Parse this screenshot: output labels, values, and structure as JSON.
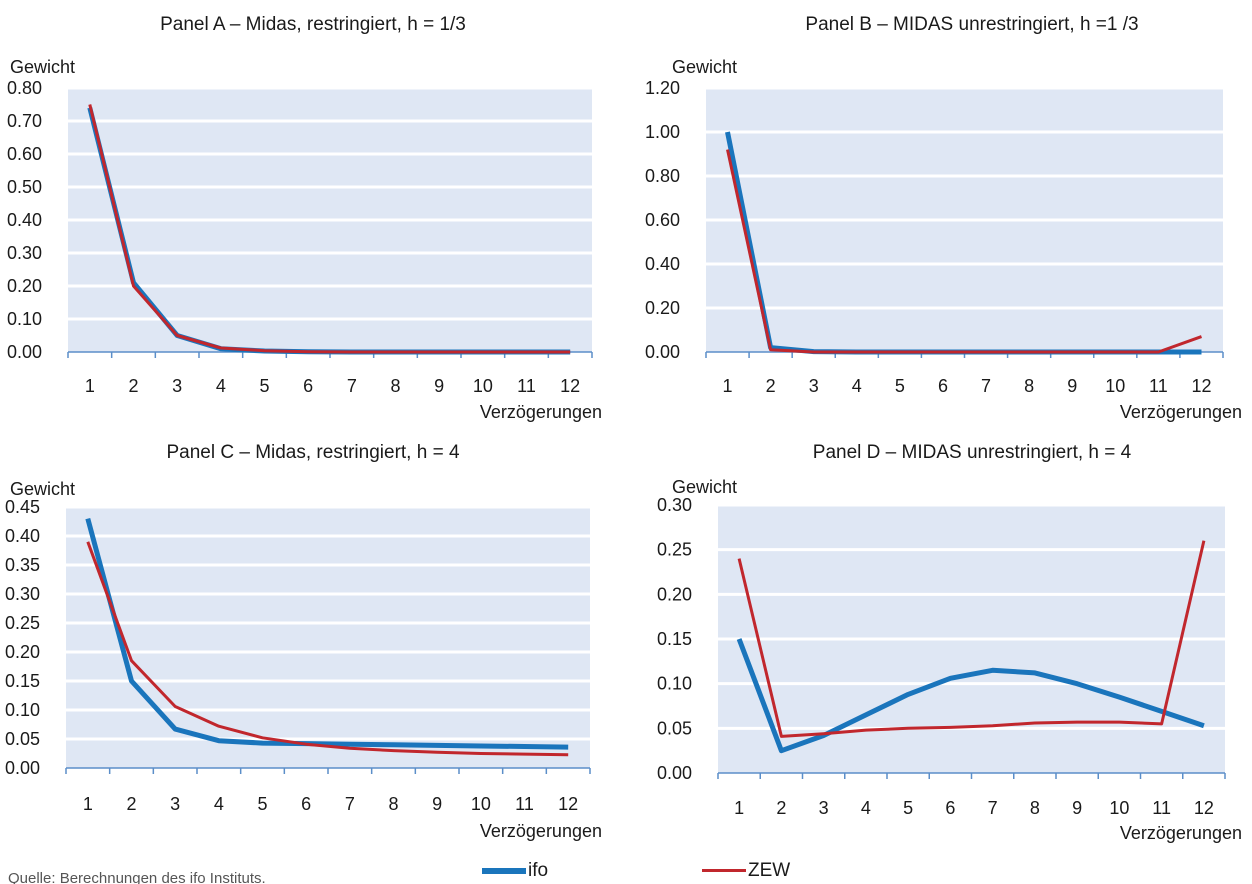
{
  "colors": {
    "ifo": "#1a75bc",
    "ZEW": "#c1272d",
    "plot_bg": "#dfe7f4",
    "grid": "#ffffff",
    "axis": "#5b8ec9"
  },
  "legend": {
    "ifo": "ifo",
    "zew": "ZEW"
  },
  "source_note": "Quelle: Berechnungen des ifo Instituts.",
  "chart_data": [
    {
      "type": "line",
      "title": "Panel A – Midas, restringiert, h = 1/3",
      "ylabel": "Gewicht",
      "xlabel": "Verzögerungen",
      "x": [
        1,
        2,
        3,
        4,
        5,
        6,
        7,
        8,
        9,
        10,
        11,
        12
      ],
      "ylim": [
        0,
        0.8
      ],
      "yticks": [
        "0.00",
        "0.10",
        "0.20",
        "0.30",
        "0.40",
        "0.50",
        "0.60",
        "0.70",
        "0.80"
      ],
      "grid": true,
      "series": [
        {
          "name": "ifo",
          "values": [
            0.74,
            0.21,
            0.05,
            0.01,
            0.003,
            0.001,
            0.0,
            0.0,
            0.0,
            0.0,
            0.0,
            0.0
          ]
        },
        {
          "name": "ZEW",
          "values": [
            0.75,
            0.2,
            0.05,
            0.012,
            0.004,
            0.001,
            0.0,
            0.0,
            0.0,
            0.0,
            0.0,
            0.0
          ]
        }
      ]
    },
    {
      "type": "line",
      "title": "Panel B – MIDAS unrestringiert, h =1 /3",
      "ylabel": "Gewicht",
      "xlabel": "Verzögerungen",
      "x": [
        1,
        2,
        3,
        4,
        5,
        6,
        7,
        8,
        9,
        10,
        11,
        12
      ],
      "ylim": [
        0,
        1.2
      ],
      "yticks": [
        "0.00",
        "0.20",
        "0.40",
        "0.60",
        "0.80",
        "1.00",
        "1.20"
      ],
      "grid": true,
      "series": [
        {
          "name": "ifo",
          "values": [
            1.0,
            0.02,
            0.002,
            0.0,
            0.0,
            0.0,
            0.0,
            0.0,
            0.0,
            0.0,
            0.0,
            0.0
          ]
        },
        {
          "name": "ZEW",
          "values": [
            0.92,
            0.01,
            0.0,
            0.0,
            0.0,
            0.0,
            0.0,
            0.0,
            0.0,
            0.0,
            0.0,
            0.07
          ]
        }
      ]
    },
    {
      "type": "line",
      "title": "Panel C – Midas, restringiert, h = 4",
      "ylabel": "Gewicht",
      "xlabel": "Verzögerungen",
      "x": [
        1,
        2,
        3,
        4,
        5,
        6,
        7,
        8,
        9,
        10,
        11,
        12
      ],
      "ylim": [
        0,
        0.45
      ],
      "yticks": [
        "0.00",
        "0.05",
        "0.10",
        "0.15",
        "0.20",
        "0.25",
        "0.30",
        "0.35",
        "0.40",
        "0.45"
      ],
      "grid": true,
      "series": [
        {
          "name": "ifo",
          "values": [
            0.43,
            0.15,
            0.067,
            0.047,
            0.043,
            0.042,
            0.041,
            0.04,
            0.039,
            0.038,
            0.037,
            0.036
          ]
        },
        {
          "name": "ZEW",
          "values": [
            0.39,
            0.185,
            0.106,
            0.072,
            0.052,
            0.041,
            0.034,
            0.03,
            0.027,
            0.025,
            0.024,
            0.023
          ]
        }
      ]
    },
    {
      "type": "line",
      "title": "Panel D – MIDAS unrestringiert, h = 4",
      "ylabel": "Gewicht",
      "xlabel": "Verzögerungen",
      "x": [
        1,
        2,
        3,
        4,
        5,
        6,
        7,
        8,
        9,
        10,
        11,
        12
      ],
      "ylim": [
        0,
        0.3
      ],
      "yticks": [
        "0.00",
        "0.05",
        "0.10",
        "0.15",
        "0.20",
        "0.25",
        "0.30"
      ],
      "grid": true,
      "series": [
        {
          "name": "ifo",
          "values": [
            0.15,
            0.025,
            0.042,
            0.065,
            0.088,
            0.106,
            0.115,
            0.112,
            0.1,
            0.085,
            0.069,
            0.053
          ]
        },
        {
          "name": "ZEW",
          "values": [
            0.24,
            0.041,
            0.044,
            0.048,
            0.05,
            0.051,
            0.053,
            0.056,
            0.057,
            0.057,
            0.055,
            0.26
          ]
        }
      ]
    }
  ]
}
